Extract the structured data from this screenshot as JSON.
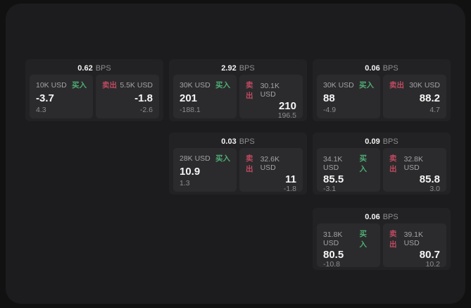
{
  "labels": {
    "bps_unit": "BPS",
    "buy": "买入",
    "sell": "卖出"
  },
  "colors": {
    "buy_label": "#4fae74",
    "sell_label": "#bf4a60",
    "page_bg": "#111112",
    "panel_bg": "#1c1c1e",
    "card_bg": "#222224",
    "tile_bg": "#2b2b2d"
  },
  "cards": [
    {
      "row": 0,
      "col": 0,
      "bps": "0.62",
      "buy": {
        "amount": "10K USD",
        "price": "-3.7",
        "delta": "4.3"
      },
      "sell": {
        "amount": "5.5K USD",
        "price": "-1.8",
        "delta": "-2.6"
      }
    },
    {
      "row": 0,
      "col": 1,
      "bps": "2.92",
      "buy": {
        "amount": "30K USD",
        "price": "201",
        "delta": "-188.1"
      },
      "sell": {
        "amount": "30.1K USD",
        "price": "210",
        "delta": "196.5"
      }
    },
    {
      "row": 0,
      "col": 2,
      "bps": "0.06",
      "buy": {
        "amount": "30K USD",
        "price": "88",
        "delta": "-4.9"
      },
      "sell": {
        "amount": "30K USD",
        "price": "88.2",
        "delta": "4.7"
      }
    },
    {
      "row": 1,
      "col": 1,
      "bps": "0.03",
      "buy": {
        "amount": "28K USD",
        "price": "10.9",
        "delta": "1.3"
      },
      "sell": {
        "amount": "32.6K USD",
        "price": "11",
        "delta": "-1.8"
      }
    },
    {
      "row": 1,
      "col": 2,
      "bps": "0.09",
      "buy": {
        "amount": "34.1K USD",
        "price": "85.5",
        "delta": "-3.1"
      },
      "sell": {
        "amount": "32.8K USD",
        "price": "85.8",
        "delta": "3.0"
      }
    },
    {
      "row": 2,
      "col": 2,
      "bps": "0.06",
      "buy": {
        "amount": "31.8K USD",
        "price": "80.5",
        "delta": "-10.8"
      },
      "sell": {
        "amount": "39.1K USD",
        "price": "80.7",
        "delta": "10.2"
      }
    }
  ]
}
